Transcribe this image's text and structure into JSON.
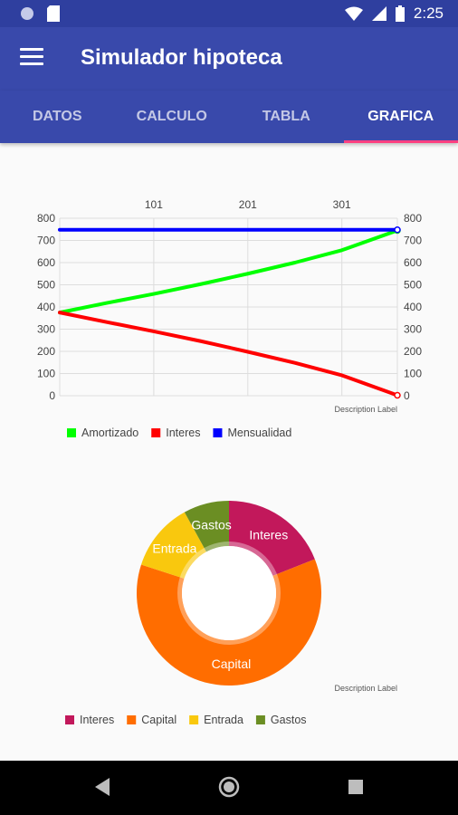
{
  "status": {
    "time": "2:25",
    "icons": [
      "circle-icon",
      "sim-icon",
      "wifi-icon",
      "signal-icon",
      "battery-icon"
    ]
  },
  "appbar": {
    "title": "Simulador hipoteca",
    "menu_icon": "menu-icon"
  },
  "tabs": [
    {
      "label": "DATOS",
      "active": false
    },
    {
      "label": "CALCULO",
      "active": false
    },
    {
      "label": "TABLA",
      "active": false
    },
    {
      "label": "GRAFICA",
      "active": true
    }
  ],
  "colors": {
    "primary": "#3949ab",
    "primary_dark": "#2f3f9f",
    "accent": "#ff4081"
  },
  "chart_data": [
    {
      "type": "line",
      "x_top_ticks": [
        "101",
        "201",
        "301"
      ],
      "x_range": [
        1,
        360
      ],
      "y_ticks": [
        "0",
        "100",
        "200",
        "300",
        "400",
        "500",
        "600",
        "700",
        "800"
      ],
      "ylim": [
        0,
        800
      ],
      "grid": true,
      "description": "Description Label",
      "series": [
        {
          "name": "Amortizado",
          "color": "#00ff00",
          "x": [
            1,
            51,
            101,
            151,
            201,
            251,
            301,
            360
          ],
          "values": [
            375,
            418,
            459,
            503,
            550,
            600,
            656,
            745
          ]
        },
        {
          "name": "Interes",
          "color": "#ff0000",
          "x": [
            1,
            51,
            101,
            151,
            201,
            251,
            301,
            360
          ],
          "values": [
            375,
            332,
            290,
            246,
            198,
            148,
            92,
            2
          ]
        },
        {
          "name": "Mensualidad",
          "color": "#0000ff",
          "x": [
            1,
            360
          ],
          "values": [
            748,
            748
          ]
        }
      ],
      "legend_position": "bottom-left"
    },
    {
      "type": "pie",
      "style": "donut",
      "description": "Description Label",
      "slices": [
        {
          "label": "Interes",
          "value": 19,
          "color": "#c2185b"
        },
        {
          "label": "Capital",
          "value": 61,
          "color": "#ff6d00"
        },
        {
          "label": "Entrada",
          "value": 12,
          "color": "#f9c80e"
        },
        {
          "label": "Gastos",
          "value": 8,
          "color": "#6b8e23"
        }
      ],
      "legend_position": "bottom-left"
    }
  ]
}
